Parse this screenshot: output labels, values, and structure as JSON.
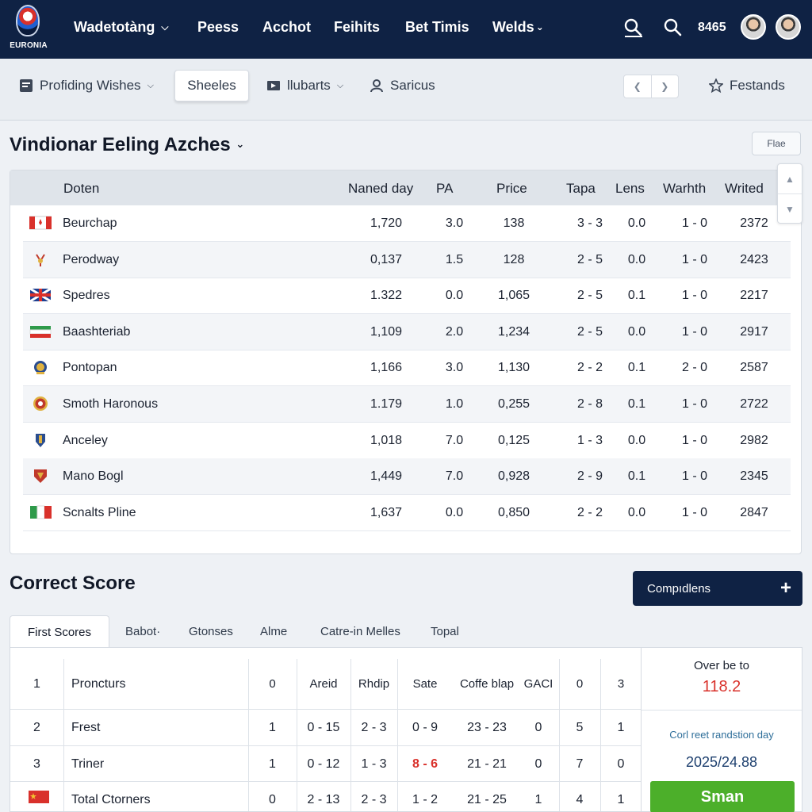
{
  "brand": {
    "logo_text": "EURONIA"
  },
  "nav": {
    "items": [
      {
        "label": "Wadetotàng",
        "has_dropdown": true
      },
      {
        "label": "Peess",
        "has_dropdown": false
      },
      {
        "label": "Acchot",
        "has_dropdown": false
      },
      {
        "label": "Feihits",
        "has_dropdown": false
      },
      {
        "label": "Bet Timis",
        "has_dropdown": false
      },
      {
        "label": "Welds",
        "has_dropdown": true
      }
    ],
    "icons": [
      "search-icon",
      "search-icon"
    ],
    "count": "8465"
  },
  "toolbar": {
    "items": [
      {
        "label": "Profiding Wishes",
        "icon": "list-icon"
      },
      {
        "label": "Sheeles",
        "active": true
      },
      {
        "label": "llubarts",
        "icon": "screen-icon"
      },
      {
        "label": "Saricus",
        "icon": "user-icon"
      }
    ],
    "favorites_label": "Festands"
  },
  "section1": {
    "title": "Vindionar Eeling Azches",
    "filter_label": "Flae",
    "columns": [
      "Doten",
      "Naned day",
      "PA",
      "Price",
      "Tapa",
      "Lens",
      "Warhth",
      "Writed"
    ],
    "rows": [
      {
        "crest": "canada-flag",
        "team": "Beurchap",
        "named_day": "1,720",
        "pa": "3.0",
        "price": "138",
        "tapa": "3 - 3",
        "lens": "0.0",
        "warhth": "1 - 0",
        "writed": "2372"
      },
      {
        "crest": "emblem-crest",
        "team": "Perodway",
        "named_day": "0,137",
        "pa": "1.5",
        "price": "128",
        "tapa": "2 - 5",
        "lens": "0.0",
        "warhth": "1 - 0",
        "writed": "2423"
      },
      {
        "crest": "uk-flag",
        "team": "Spedres",
        "named_day": "1.322",
        "pa": "0.0",
        "price": "1,065",
        "tapa": "2 - 5",
        "lens": "0.1",
        "warhth": "1 - 0",
        "writed": "2217"
      },
      {
        "crest": "tricolor-flag",
        "team": "Baashteriab",
        "named_day": "1,109",
        "pa": "2.0",
        "price": "1,234",
        "tapa": "2 - 5",
        "lens": "0.0",
        "warhth": "1 - 0",
        "writed": "2917"
      },
      {
        "crest": "gold-crest",
        "team": "Pontopan",
        "named_day": "1,166",
        "pa": "3.0",
        "price": "1,130",
        "tapa": "2 - 2",
        "lens": "0.1",
        "warhth": "2 - 0",
        "writed": "2587"
      },
      {
        "crest": "red-crest",
        "team": "Smoth Haronous",
        "named_day": "1.179",
        "pa": "1.0",
        "price": "0,255",
        "tapa": "2 - 8",
        "lens": "0.1",
        "warhth": "1 - 0",
        "writed": "2722"
      },
      {
        "crest": "blue-crest",
        "team": "Anceley",
        "named_day": "1,018",
        "pa": "7.0",
        "price": "0,125",
        "tapa": "1 - 3",
        "lens": "0.0",
        "warhth": "1 - 0",
        "writed": "2982"
      },
      {
        "crest": "shield-crest",
        "team": "Mano Bogl",
        "named_day": "1,449",
        "pa": "7.0",
        "price": "0,928",
        "tapa": "2 - 9",
        "lens": "0.1",
        "warhth": "1 - 0",
        "writed": "2345"
      },
      {
        "crest": "italy-flag",
        "team": "Scnalts Pline",
        "named_day": "1,637",
        "pa": "0.0",
        "price": "0,850",
        "tapa": "2 - 2",
        "lens": "0.0",
        "warhth": "1 - 0",
        "writed": "2847"
      }
    ]
  },
  "section2": {
    "title": "Correct Score",
    "button_label": "Compıdlens",
    "tabs": [
      "First Scores",
      "Babot·",
      "Gtonses",
      "Alme",
      "Catre-in Melles",
      "Topal"
    ],
    "header": {
      "num": "1",
      "name": "Proncturs",
      "c1": "0",
      "c2": "Areid",
      "c3": "Rhdip",
      "c4": "Sate",
      "c5": "Coffe blap",
      "c6": "GACI",
      "c7": "0",
      "c8": "3"
    },
    "rows": [
      {
        "num": "2",
        "name": "Frest",
        "c1": "1",
        "c2": "0 - 15",
        "c3": "2 - 3",
        "c4": "0 - 9",
        "c5": "23 - 23",
        "c6": "0",
        "c7": "5",
        "c8": "1"
      },
      {
        "num": "3",
        "name": "Triner",
        "c1": "1",
        "c2": "0 - 12",
        "c3": "1 - 3",
        "c4": "8 - 6",
        "c5": "21 - 21",
        "c6": "0",
        "c7": "7",
        "c8": "0"
      },
      {
        "num": "",
        "name": "Total Ctorners",
        "c1": "0",
        "c2": "2 - 13",
        "c3": "2 - 3",
        "c4": "1 - 2",
        "c5": "21 - 25",
        "c6": "1",
        "c7": "4",
        "c8": "1"
      }
    ],
    "highlight_color": "#d9312b",
    "side": {
      "over_label": "Over be to",
      "over_value": "118.2",
      "info_label": "Corl reet randstion day",
      "info_value": "2025/24.88",
      "action_label": "Sman"
    }
  }
}
